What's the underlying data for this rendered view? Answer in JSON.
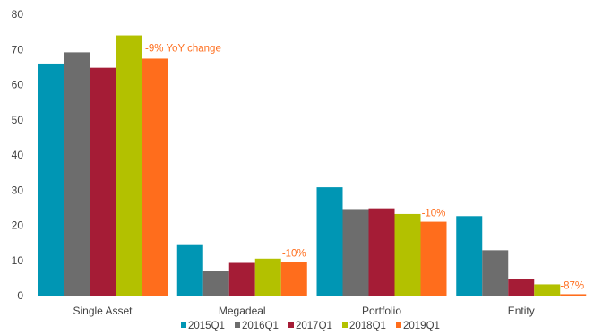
{
  "chart_data": {
    "type": "bar",
    "title": "",
    "xlabel": "",
    "ylabel": "",
    "ylim": [
      0,
      80
    ],
    "yticks": [
      0,
      10,
      20,
      30,
      40,
      50,
      60,
      70,
      80
    ],
    "categories": [
      "Single Asset",
      "Megadeal",
      "Portfolio",
      "Entity"
    ],
    "series": [
      {
        "name": "2015Q1",
        "color": "#0096B4",
        "values": [
          66,
          14.6,
          30.8,
          22.6
        ]
      },
      {
        "name": "2016Q1",
        "color": "#6D6D6D",
        "values": [
          69.2,
          7,
          24.6,
          12.9
        ]
      },
      {
        "name": "2017Q1",
        "color": "#A51C36",
        "values": [
          64.8,
          9.3,
          24.8,
          4.8
        ]
      },
      {
        "name": "2018Q1",
        "color": "#B3C100",
        "values": [
          74,
          10.5,
          23.2,
          3.2
        ]
      },
      {
        "name": "2019Q1",
        "color": "#FF6D1C",
        "values": [
          67.4,
          9.5,
          21,
          0.4
        ]
      }
    ],
    "annotations": [
      "-9% YoY change",
      "-10%",
      "-10%",
      "-87%"
    ],
    "annotation_color": "#FF6D1C",
    "axis_color": "#BFBFBF",
    "legend_position": "bottom",
    "grid": false
  }
}
